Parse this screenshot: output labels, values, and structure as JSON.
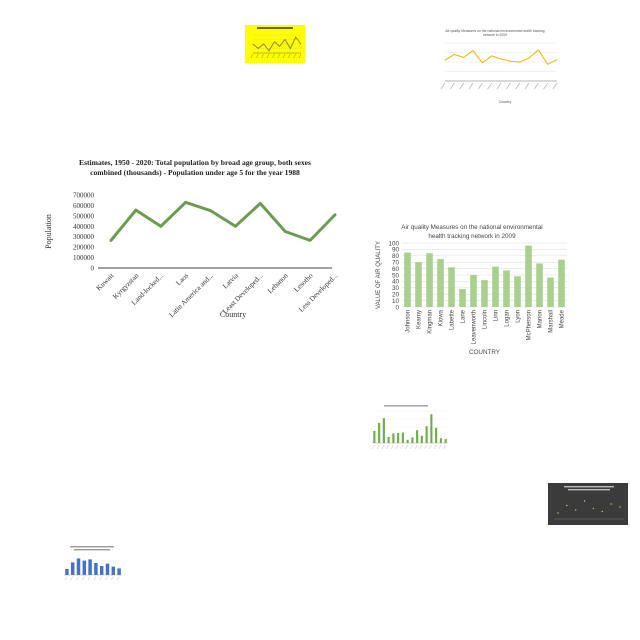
{
  "chart_data": [
    {
      "id": "population",
      "type": "line",
      "title": "Estimates, 1950 - 2020: Total population by broad age group, both sexes combined (thousands) - Population under age 5 for the year 1988",
      "title_lines": [
        "Estimates, 1950 - 2020: Total population by broad age group, both sexes",
        "combined (thousands) - Population under age 5 for the year 1988"
      ],
      "xlabel": "Country",
      "ylabel": "Population",
      "categories": [
        "Kuwait",
        "Kyrgyzstan",
        "Land-locked...",
        "Laos",
        "Latin America and...",
        "Latvia",
        "Least Developed...",
        "Lebanon",
        "Lesotho",
        "Less Developed..."
      ],
      "values": [
        265000,
        555000,
        400000,
        630000,
        550000,
        400000,
        620000,
        350000,
        265000,
        510000
      ],
      "yticks": [
        "0",
        "100000",
        "200000",
        "300000",
        "400000",
        "500000",
        "600000",
        "700000"
      ],
      "ylim": [
        0,
        700000
      ],
      "color": "#6d9b51",
      "grid": false
    },
    {
      "id": "air-quality",
      "type": "bar",
      "title": "Air quality Measures on the national environmental health tracking network in 2009",
      "title_lines": [
        "Air quality Measures on the national environmental",
        "health tracking network in 2009"
      ],
      "xlabel": "COUNTRY",
      "ylabel": "VALUE OF AIR QUALITY",
      "categories": [
        "Johnson",
        "Kearny",
        "Kingman",
        "Kiowa",
        "Labette",
        "Lane",
        "Leavenworth",
        "Lincoln",
        "Linn",
        "Logan",
        "Lyon",
        "McPherson",
        "Marion",
        "Marshall",
        "Meade"
      ],
      "values": [
        85,
        70,
        84,
        75,
        62,
        28,
        50,
        42,
        63,
        57,
        48,
        96,
        68,
        46,
        74
      ],
      "yticks": [
        "0",
        "10",
        "20",
        "30",
        "40",
        "50",
        "60",
        "70",
        "80",
        "90",
        "100"
      ],
      "ylim": [
        0,
        100
      ],
      "color": "#a9d08e",
      "grid": true
    },
    {
      "id": "thumb-yellow-line",
      "type": "line",
      "values": [
        4,
        2,
        4,
        1,
        5,
        3,
        6,
        2,
        7,
        4
      ],
      "ylim": [
        0,
        8
      ],
      "background": "#ffff00",
      "color": "#8a8a3a"
    },
    {
      "id": "thumb-orange-line",
      "type": "line",
      "title": "Air quality Measures on the national environmental health tracking network in 2009",
      "xlabel": "Country",
      "values": [
        55,
        70,
        62,
        80,
        48,
        66,
        58,
        52,
        50,
        60,
        82,
        44,
        56
      ],
      "ylim": [
        0,
        100
      ],
      "color": "#f2b200"
    },
    {
      "id": "thumb-green-bar",
      "type": "bar",
      "values": [
        30,
        50,
        62,
        15,
        24,
        25,
        26,
        8,
        14,
        32,
        18,
        42,
        72,
        38,
        12,
        10
      ],
      "ylim": [
        0,
        80
      ],
      "color": "#6fae4a"
    },
    {
      "id": "thumb-dark-scatter",
      "type": "scatter",
      "values": [
        20,
        45,
        30,
        60,
        35,
        25,
        50,
        40
      ],
      "ylim": [
        0,
        80
      ],
      "background": "#3b3b3b",
      "color": "#d4c26a"
    },
    {
      "id": "thumb-blue-bar",
      "type": "bar",
      "values": [
        20,
        42,
        55,
        48,
        52,
        40,
        30,
        38,
        28,
        22
      ],
      "ylim": [
        0,
        70
      ],
      "color": "#4472c4"
    }
  ]
}
